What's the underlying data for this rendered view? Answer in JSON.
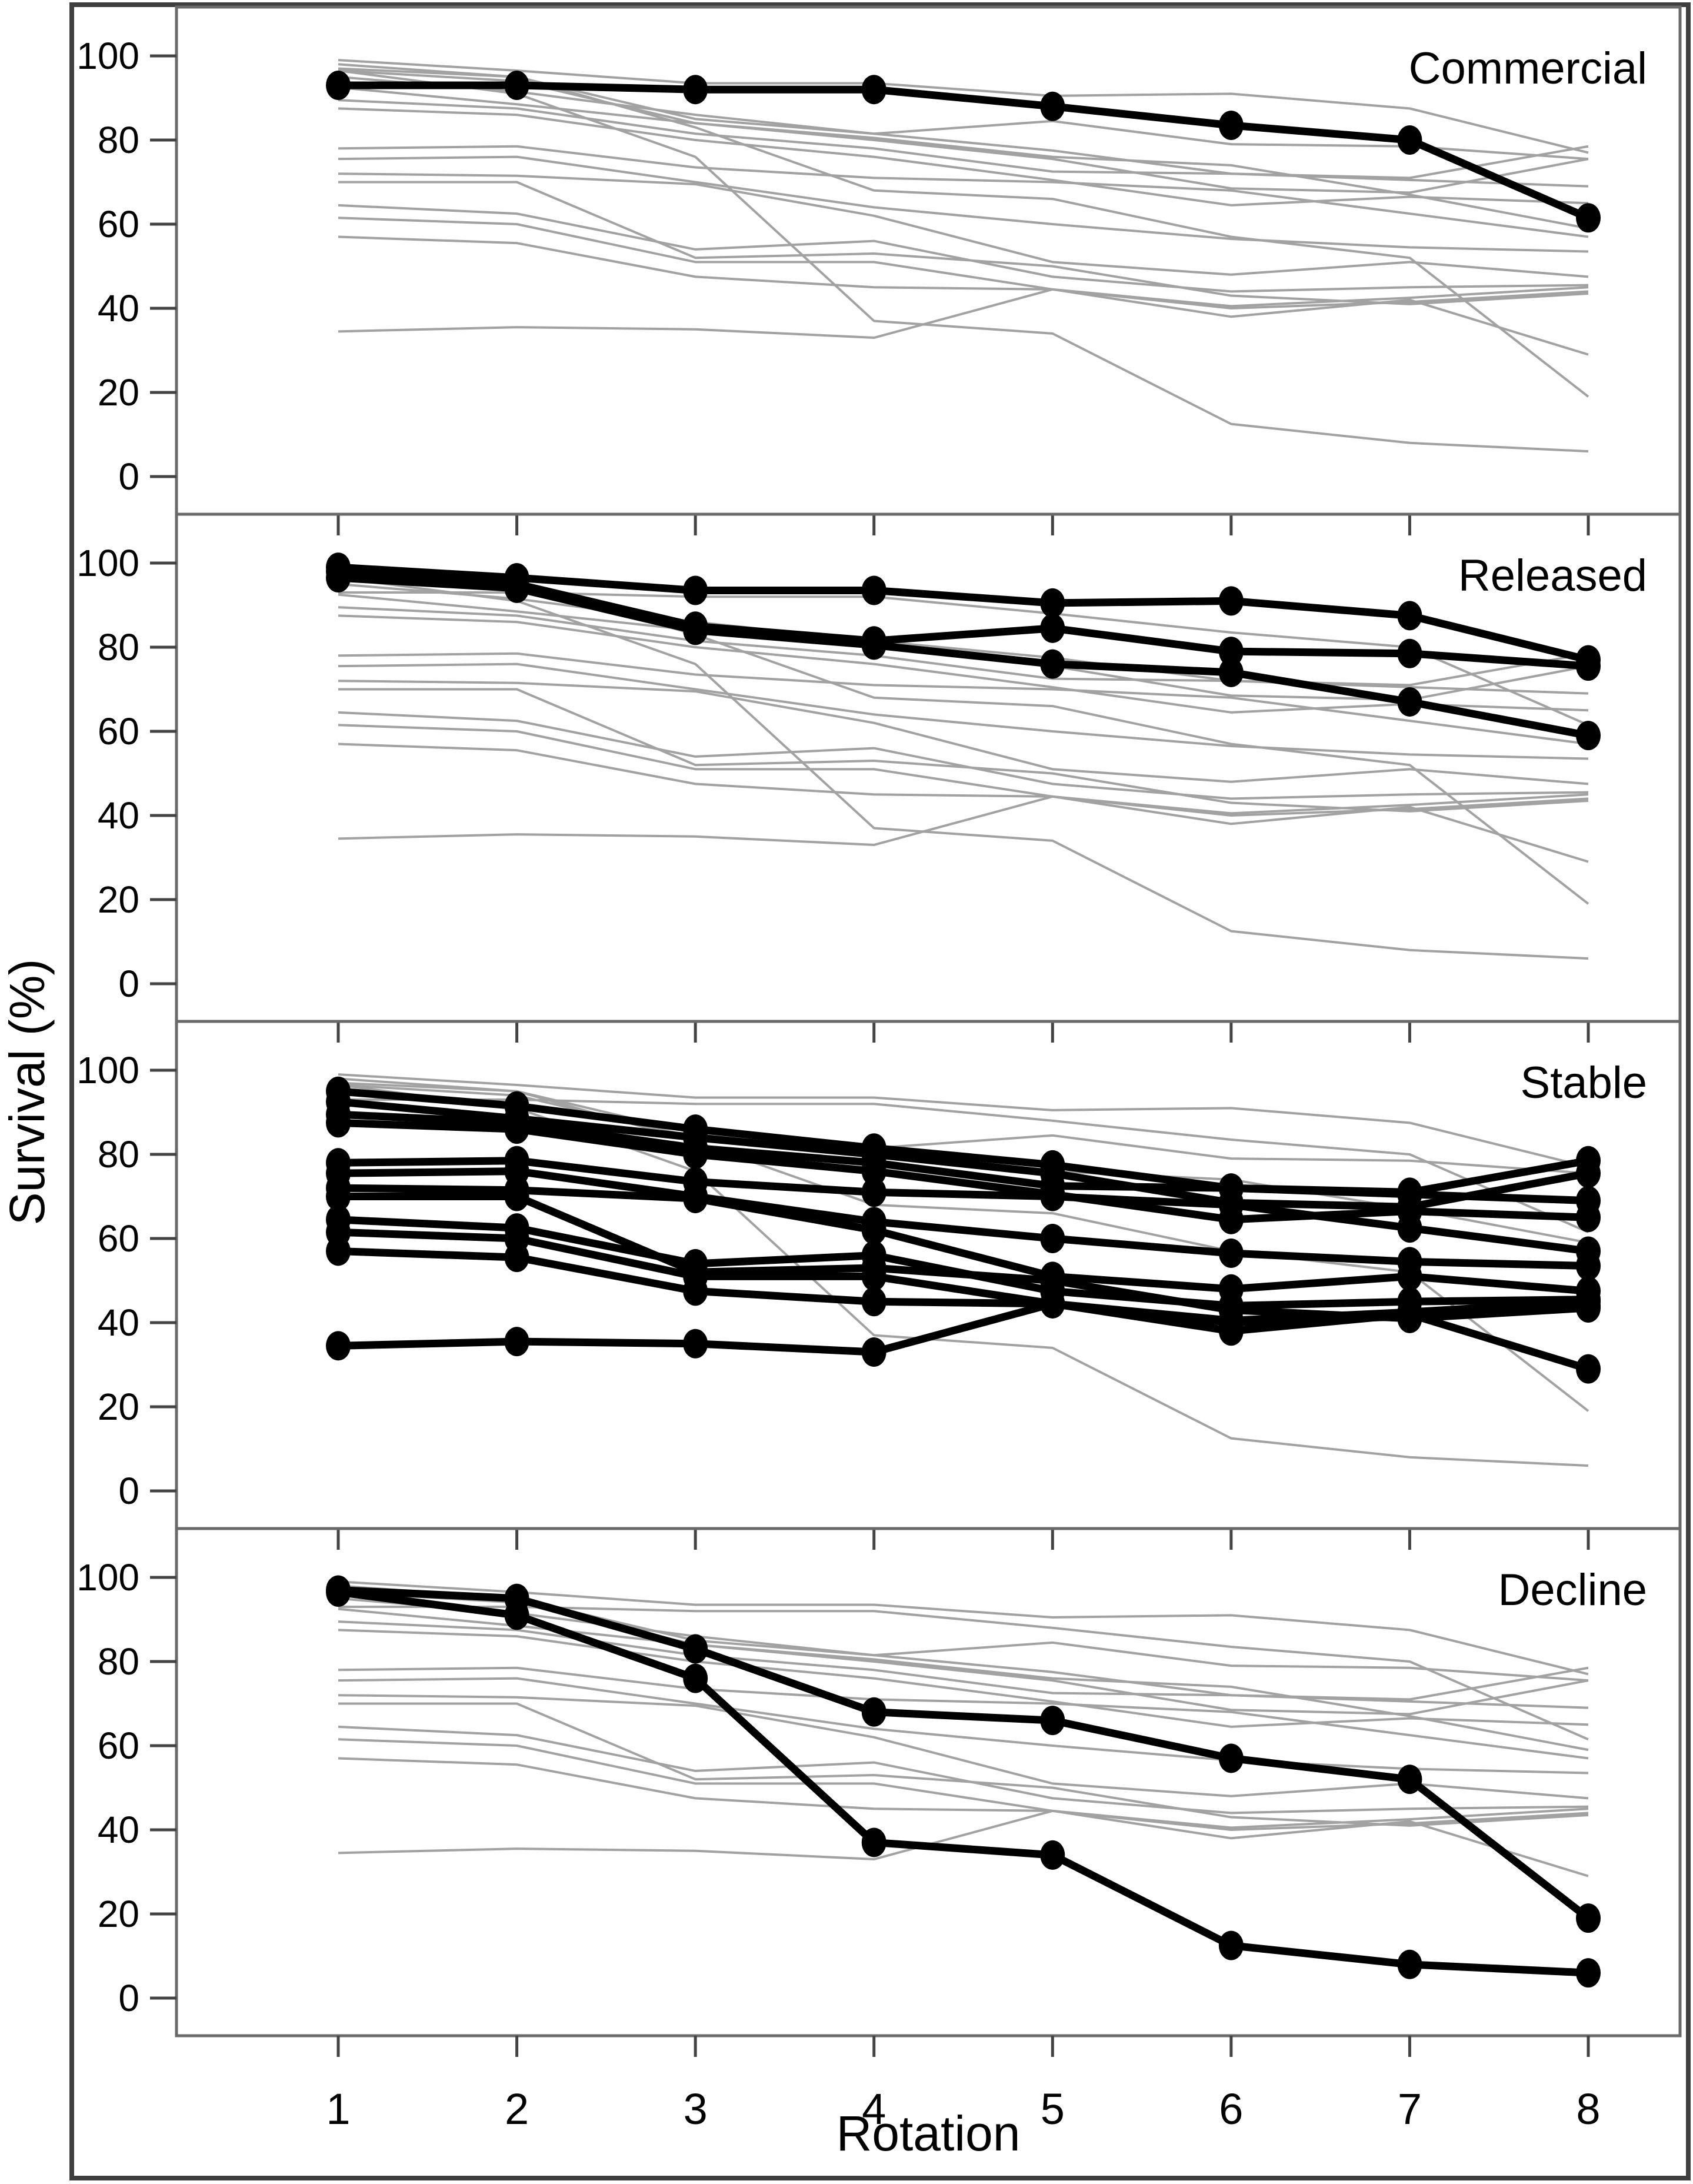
{
  "figure": {
    "xlabel": "Rotation",
    "ylabel": "Survival (%)"
  },
  "chart_data": {
    "type": "line",
    "title": "",
    "xlabel": "Rotation",
    "ylabel": "Survival (%)",
    "x": [
      1,
      2,
      3,
      4,
      5,
      6,
      7,
      8
    ],
    "x_tick_labels": [
      "1",
      "2",
      "3",
      "4",
      "5",
      "6",
      "7",
      "8"
    ],
    "y_tick_labels": [
      "100",
      "80",
      "60",
      "40",
      "20",
      "0"
    ],
    "y_tick_values": [
      100,
      80,
      60,
      40,
      20,
      0
    ],
    "ylim": [
      0,
      100
    ],
    "grid": false,
    "legend": "none",
    "panels": [
      {
        "label": "Commercial"
      },
      {
        "label": "Released"
      },
      {
        "label": "Stable"
      },
      {
        "label": "Decline"
      }
    ],
    "line_colors": {
      "background_series": "#a2a2a2",
      "highlight_series": "#000000"
    },
    "series": [
      {
        "id": "C1",
        "category": "Commercial",
        "values": [
          93,
          93,
          92,
          92,
          88,
          83.5,
          80,
          61.5
        ]
      },
      {
        "id": "R1",
        "category": "Released",
        "values": [
          99,
          96.5,
          93.5,
          93.5,
          90.5,
          91,
          87.5,
          77
        ]
      },
      {
        "id": "R2",
        "category": "Released",
        "values": [
          98,
          95,
          85,
          81.5,
          84.5,
          79,
          78.5,
          75.5
        ]
      },
      {
        "id": "R3",
        "category": "Released",
        "values": [
          96.5,
          94,
          84,
          80.5,
          76,
          74,
          67,
          59
        ]
      },
      {
        "id": "S1",
        "category": "Stable",
        "values": [
          95,
          91.5,
          86,
          81.5,
          77.5,
          72,
          71,
          78.5
        ]
      },
      {
        "id": "S2",
        "category": "Stable",
        "values": [
          92.5,
          88.5,
          84,
          80,
          75.5,
          68.5,
          67.5,
          75.5
        ]
      },
      {
        "id": "S3",
        "category": "Stable",
        "values": [
          89.5,
          87.5,
          81.5,
          78,
          72.5,
          72,
          70.5,
          69
        ]
      },
      {
        "id": "S4",
        "category": "Stable",
        "values": [
          87.5,
          86,
          80,
          76,
          70.5,
          64.5,
          66.5,
          65
        ]
      },
      {
        "id": "S5",
        "category": "Stable",
        "values": [
          78,
          78.5,
          73.5,
          71,
          70,
          68,
          62.5,
          57
        ]
      },
      {
        "id": "S6",
        "category": "Stable",
        "values": [
          75.5,
          76,
          70,
          64,
          60,
          56.5,
          54.5,
          53.5
        ]
      },
      {
        "id": "S7",
        "category": "Stable",
        "values": [
          72,
          71.5,
          69.5,
          62,
          51,
          48,
          51,
          47.5
        ]
      },
      {
        "id": "S8",
        "category": "Stable",
        "values": [
          70,
          70,
          52,
          53,
          50,
          43,
          41,
          43.5
        ]
      },
      {
        "id": "S9",
        "category": "Stable",
        "values": [
          64.5,
          62.5,
          54,
          56,
          47.5,
          44,
          45,
          45.5
        ]
      },
      {
        "id": "S10",
        "category": "Stable",
        "values": [
          61.5,
          60,
          51,
          51,
          44.5,
          40,
          41.5,
          44
        ]
      },
      {
        "id": "S11",
        "category": "Stable",
        "values": [
          57,
          55.5,
          47.5,
          45,
          44.5,
          38,
          42,
          29
        ]
      },
      {
        "id": "S12",
        "category": "Stable",
        "values": [
          34.5,
          35.5,
          35,
          33,
          44.5,
          40.5,
          42.5,
          45
        ]
      },
      {
        "id": "D1",
        "category": "Decline",
        "values": [
          97,
          95,
          83,
          68,
          66,
          57,
          52,
          19
        ]
      },
      {
        "id": "D2",
        "category": "Decline",
        "values": [
          96.5,
          91,
          76,
          37,
          34,
          12.5,
          8,
          6
        ]
      }
    ]
  }
}
